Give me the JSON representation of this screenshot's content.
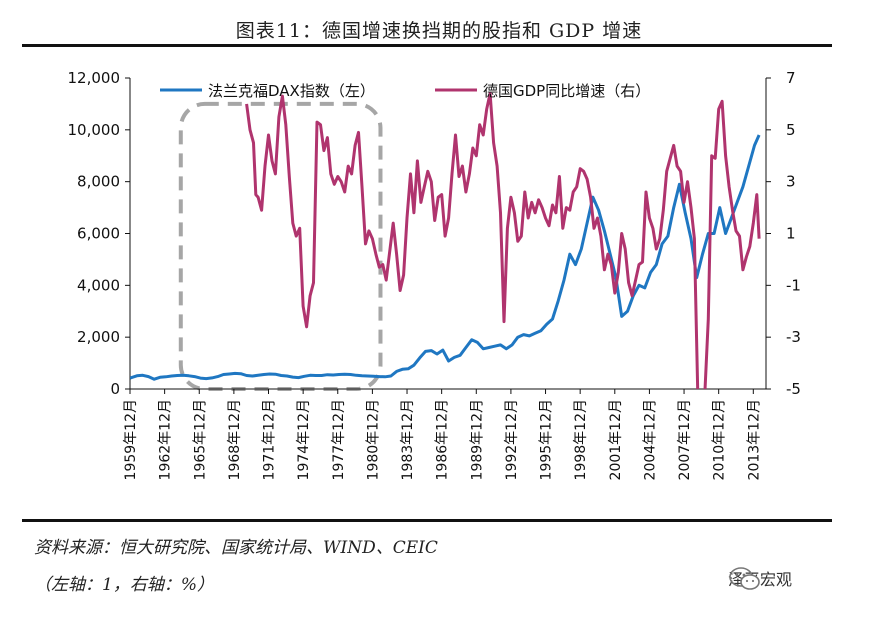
{
  "title": "图表11：德国增速换挡期的股指和 GDP 增速",
  "source": "资料来源：恒大研究院、国家统计局、WIND、CEIC",
  "note": "（左轴：1，右轴：%）",
  "brand": "泽平宏观",
  "colors": {
    "dax": "#1f77c2",
    "gdp": "#b0346e",
    "box": "#a6a6a6",
    "axis": "#111111"
  },
  "chart_data": {
    "type": "line",
    "title": "",
    "x_label_format": "YYYY年MM月",
    "x_tick_labels": [
      "1959年12月",
      "1962年12月",
      "1965年12月",
      "1968年12月",
      "1971年12月",
      "1974年12月",
      "1977年12月",
      "1980年12月",
      "1983年12月",
      "1986年12月",
      "1989年12月",
      "1992年12月",
      "1995年12月",
      "1998年12月",
      "2001年12月",
      "2004年12月",
      "2007年12月",
      "2010年12月",
      "2013年12月"
    ],
    "xlim": [
      1959.9,
      2015.0
    ],
    "y_left": {
      "ticks": [
        "0",
        "2,000",
        "4,000",
        "6,000",
        "8,000",
        "10,000",
        "12,000"
      ],
      "lim": [
        0,
        12000
      ]
    },
    "y_right": {
      "ticks": [
        "-5",
        "-3",
        "-1",
        "1",
        "3",
        "5",
        "7"
      ],
      "lim": [
        -5,
        7
      ]
    },
    "legend_position": "top",
    "series": [
      {
        "name": "法兰克福DAX指数（左）",
        "axis": "left",
        "color": "#1f77c2",
        "x": [
          1959.9,
          1960.5,
          1961.0,
          1961.5,
          1962.0,
          1962.5,
          1963.0,
          1963.5,
          1964.0,
          1964.5,
          1965.0,
          1965.5,
          1966.0,
          1966.5,
          1967.0,
          1967.5,
          1968.0,
          1968.5,
          1969.0,
          1969.5,
          1970.0,
          1970.5,
          1971.0,
          1971.5,
          1972.0,
          1972.5,
          1973.0,
          1973.5,
          1974.0,
          1974.5,
          1975.0,
          1975.5,
          1976.0,
          1976.5,
          1977.0,
          1977.5,
          1978.0,
          1978.5,
          1979.0,
          1979.5,
          1980.0,
          1980.5,
          1981.0,
          1981.5,
          1982.0,
          1982.5,
          1983.0,
          1983.5,
          1984.0,
          1984.5,
          1985.0,
          1985.5,
          1986.0,
          1986.5,
          1987.0,
          1987.5,
          1988.0,
          1988.5,
          1989.0,
          1989.5,
          1990.0,
          1990.5,
          1991.0,
          1991.5,
          1992.0,
          1992.5,
          1993.0,
          1993.5,
          1994.0,
          1994.5,
          1995.0,
          1995.5,
          1996.0,
          1996.5,
          1997.0,
          1997.5,
          1998.0,
          1998.5,
          1999.0,
          1999.5,
          2000.0,
          2000.5,
          2001.0,
          2001.5,
          2002.0,
          2002.5,
          2003.0,
          2003.5,
          2004.0,
          2004.5,
          2005.0,
          2005.5,
          2006.0,
          2006.5,
          2007.0,
          2007.5,
          2008.0,
          2008.5,
          2009.0,
          2009.5,
          2010.0,
          2010.5,
          2011.0,
          2011.5,
          2012.0,
          2012.5,
          2013.0,
          2013.5,
          2014.0,
          2014.4
        ],
        "values": [
          420,
          510,
          530,
          480,
          380,
          450,
          470,
          500,
          520,
          530,
          510,
          480,
          420,
          400,
          430,
          480,
          560,
          580,
          600,
          590,
          520,
          500,
          530,
          560,
          580,
          570,
          520,
          500,
          460,
          440,
          490,
          530,
          520,
          520,
          550,
          540,
          560,
          570,
          560,
          530,
          510,
          500,
          490,
          480,
          470,
          500,
          680,
          760,
          780,
          920,
          1200,
          1450,
          1480,
          1350,
          1500,
          1080,
          1220,
          1300,
          1600,
          1900,
          1800,
          1550,
          1600,
          1650,
          1700,
          1550,
          1700,
          2000,
          2100,
          2050,
          2150,
          2250,
          2500,
          2700,
          3400,
          4200,
          5200,
          4800,
          5400,
          6400,
          7400,
          6900,
          6100,
          5200,
          4300,
          2800,
          3000,
          3600,
          4000,
          3900,
          4500,
          4800,
          5600,
          5900,
          7000,
          7900,
          6800,
          5800,
          4300,
          5200,
          6000,
          6000,
          7000,
          6000,
          6600,
          7200,
          7800,
          8600,
          9400,
          9800
        ]
      },
      {
        "name": "德国GDP同比增速（右）",
        "axis": "right",
        "color": "#b0346e",
        "x": [
          1970.0,
          1970.3,
          1970.6,
          1970.8,
          1971.0,
          1971.3,
          1971.6,
          1971.9,
          1972.2,
          1972.5,
          1972.8,
          1973.1,
          1973.4,
          1973.7,
          1974.0,
          1974.3,
          1974.6,
          1974.9,
          1975.2,
          1975.5,
          1975.8,
          1976.1,
          1976.4,
          1976.7,
          1977.0,
          1977.3,
          1977.6,
          1977.9,
          1978.2,
          1978.5,
          1978.8,
          1979.1,
          1979.4,
          1979.7,
          1980.0,
          1980.3,
          1980.6,
          1980.9,
          1981.2,
          1981.5,
          1981.8,
          1982.1,
          1982.4,
          1982.7,
          1983.0,
          1983.3,
          1983.6,
          1983.9,
          1984.2,
          1984.5,
          1984.8,
          1985.1,
          1985.4,
          1985.7,
          1986.0,
          1986.3,
          1986.6,
          1986.9,
          1987.2,
          1987.5,
          1987.8,
          1988.1,
          1988.4,
          1988.7,
          1989.0,
          1989.3,
          1989.6,
          1989.9,
          1990.2,
          1990.5,
          1990.8,
          1991.1,
          1991.4,
          1991.7,
          1992.0,
          1992.3,
          1992.6,
          1992.9,
          1993.2,
          1993.5,
          1993.8,
          1994.1,
          1994.4,
          1994.7,
          1995.0,
          1995.3,
          1995.6,
          1995.9,
          1996.2,
          1996.5,
          1996.8,
          1997.1,
          1997.4,
          1997.7,
          1998.0,
          1998.3,
          1998.6,
          1998.9,
          1999.2,
          1999.5,
          1999.8,
          2000.1,
          2000.4,
          2000.7,
          2001.0,
          2001.3,
          2001.6,
          2001.9,
          2002.2,
          2002.5,
          2002.8,
          2003.1,
          2003.4,
          2003.7,
          2004.0,
          2004.3,
          2004.6,
          2004.9,
          2005.2,
          2005.5,
          2005.8,
          2006.1,
          2006.4,
          2006.7,
          2007.0,
          2007.3,
          2007.6,
          2007.9,
          2008.2,
          2008.5,
          2008.8,
          2009.1,
          2009.4,
          2009.7,
          2010.0,
          2010.3,
          2010.6,
          2010.9,
          2011.2,
          2011.5,
          2011.8,
          2012.1,
          2012.4,
          2012.7,
          2013.0,
          2013.3,
          2013.6,
          2013.9,
          2014.2,
          2014.4
        ],
        "values": [
          6.0,
          5.0,
          4.5,
          2.5,
          2.4,
          1.9,
          3.6,
          4.8,
          3.8,
          3.3,
          5.5,
          6.3,
          5.2,
          3.2,
          1.4,
          0.9,
          1.2,
          -1.8,
          -2.6,
          -1.4,
          -0.9,
          5.3,
          5.2,
          4.2,
          4.7,
          3.3,
          2.9,
          3.2,
          3.0,
          2.6,
          3.6,
          3.3,
          4.4,
          4.9,
          2.8,
          0.6,
          1.1,
          0.8,
          0.2,
          -0.3,
          -0.2,
          -0.8,
          0.3,
          1.4,
          0.2,
          -1.2,
          -0.6,
          1.6,
          3.3,
          1.8,
          3.8,
          2.2,
          2.8,
          3.4,
          3.0,
          1.5,
          2.4,
          2.5,
          0.9,
          1.6,
          3.3,
          4.8,
          3.2,
          3.6,
          2.6,
          3.3,
          4.3,
          4.0,
          5.2,
          4.8,
          5.8,
          6.4,
          4.5,
          3.6,
          1.8,
          -2.4,
          1.2,
          2.4,
          1.8,
          0.7,
          0.9,
          2.6,
          1.6,
          2.2,
          1.8,
          2.3,
          2.0,
          1.6,
          1.3,
          2.1,
          1.8,
          3.2,
          1.2,
          2.0,
          1.9,
          2.6,
          2.8,
          3.5,
          3.4,
          3.1,
          2.4,
          1.2,
          1.6,
          0.9,
          -0.4,
          0.2,
          -0.2,
          -1.3,
          -0.5,
          1.0,
          0.4,
          -0.9,
          -1.4,
          -0.8,
          -0.2,
          -0.1,
          2.6,
          1.6,
          1.2,
          0.4,
          0.8,
          1.9,
          3.4,
          3.9,
          4.4,
          3.6,
          3.4,
          2.2,
          3.0,
          2.0,
          0.8,
          -5.4,
          -6.6,
          -5.2,
          -2.3,
          4.0,
          3.9,
          5.8,
          6.1,
          4.0,
          2.8,
          1.9,
          1.1,
          0.9,
          -0.4,
          0.1,
          0.5,
          1.4,
          2.5,
          0.8
        ]
      }
    ],
    "annotations": [
      {
        "type": "dashed-box",
        "x_range": [
          1964.3,
          1981.6
        ],
        "y_left_range": [
          0,
          11000
        ]
      }
    ]
  }
}
